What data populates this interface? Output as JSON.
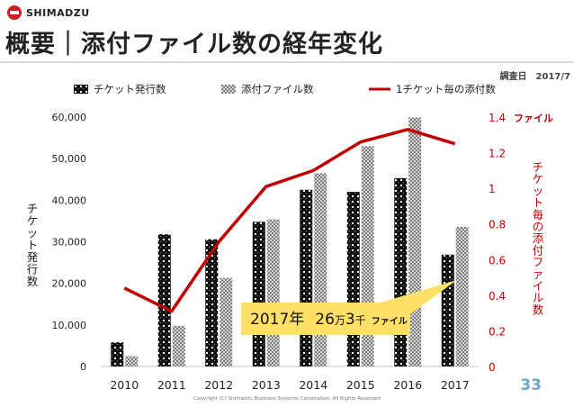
{
  "header": {
    "logo_text": "SHIMADZU",
    "title": "概要｜添付ファイル数の経年変化",
    "survey_date": "調査日　2017/7"
  },
  "chart_data": {
    "type": "bar",
    "categories": [
      "2010",
      "2011",
      "2012",
      "2013",
      "2014",
      "2015",
      "2016",
      "2017"
    ],
    "series": [
      {
        "name": "チケット発行数",
        "kind": "bar",
        "axis": "left",
        "pattern": "dark",
        "values": [
          5800,
          31800,
          30600,
          34800,
          42500,
          42000,
          45300,
          26900
        ]
      },
      {
        "name": "添付ファイル数",
        "kind": "bar",
        "axis": "left",
        "pattern": "light",
        "values": [
          2500,
          9800,
          21300,
          35400,
          46500,
          53000,
          59900,
          33600
        ]
      },
      {
        "name": "1チケット毎の添付数",
        "kind": "line",
        "axis": "right",
        "color": "#c00000",
        "values": [
          0.44,
          0.31,
          0.7,
          1.01,
          1.1,
          1.26,
          1.33,
          1.25
        ]
      }
    ],
    "ylim": [
      0,
      60000
    ],
    "y2lim": [
      0,
      1.4
    ],
    "y_ticks": [
      "0",
      "10,000",
      "20,000",
      "30,000",
      "40,000",
      "50,000",
      "60,000"
    ],
    "y2_ticks": [
      "0",
      "0.2",
      "0.4",
      "0.6",
      "0.8",
      "1",
      "1.2",
      "1.4"
    ],
    "y2_top_unit": "ファイル",
    "ylabel": "チケット発行数",
    "y2label": "チケット毎の添付ファイル数",
    "annotation": {
      "year": "2017年",
      "man": "26",
      "man_unit": "万",
      "sen": "3",
      "sen_unit": "千",
      "file": "ファイル"
    },
    "colors": {
      "line": "#c00000",
      "right_axis": "#c00000",
      "callout": "#ffe066"
    },
    "legend_position": "top"
  },
  "footer": {
    "copyright": "Copyright (C) Shimadzu Business Systems Corporation.  All Rights Reserved",
    "page_number": "33"
  }
}
